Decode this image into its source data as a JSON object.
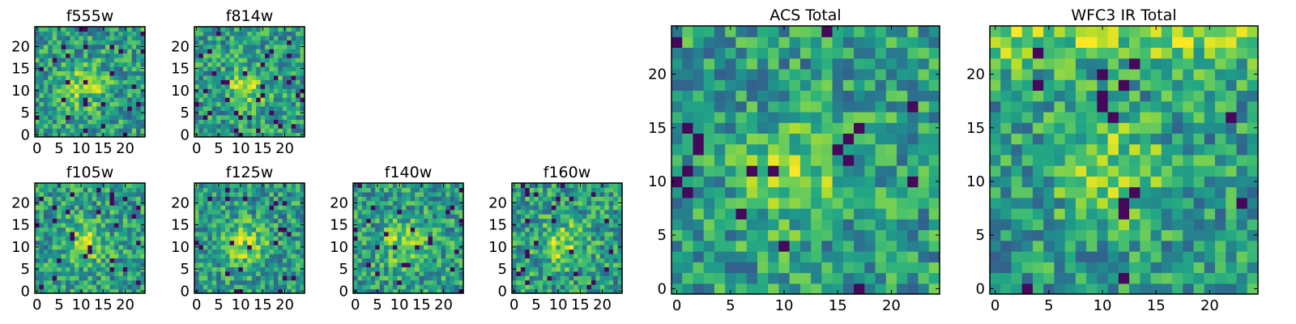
{
  "chart_data": [
    {
      "type": "heatmap",
      "title": "f555w",
      "colormap": "viridis",
      "x_ticks": [
        "0",
        "5",
        "10",
        "15",
        "20"
      ],
      "y_ticks": [
        "0",
        "5",
        "10",
        "15",
        "20"
      ],
      "xlim": [
        0,
        24
      ],
      "ylim": [
        0,
        24
      ],
      "grid_size": 25
    },
    {
      "type": "heatmap",
      "title": "f814w",
      "colormap": "viridis",
      "x_ticks": [
        "0",
        "5",
        "10",
        "15",
        "20"
      ],
      "y_ticks": [
        "0",
        "5",
        "10",
        "15",
        "20"
      ],
      "xlim": [
        0,
        24
      ],
      "ylim": [
        0,
        24
      ],
      "grid_size": 25
    },
    {
      "type": "heatmap",
      "title": "f105w",
      "colormap": "viridis",
      "x_ticks": [
        "0",
        "5",
        "10",
        "15",
        "20"
      ],
      "y_ticks": [
        "0",
        "5",
        "10",
        "15",
        "20"
      ],
      "xlim": [
        0,
        24
      ],
      "ylim": [
        0,
        24
      ],
      "grid_size": 25
    },
    {
      "type": "heatmap",
      "title": "f125w",
      "colormap": "viridis",
      "x_ticks": [
        "0",
        "5",
        "10",
        "15",
        "20"
      ],
      "y_ticks": [
        "0",
        "5",
        "10",
        "15",
        "20"
      ],
      "xlim": [
        0,
        24
      ],
      "ylim": [
        0,
        24
      ],
      "grid_size": 25
    },
    {
      "type": "heatmap",
      "title": "f140w",
      "colormap": "viridis",
      "x_ticks": [
        "0",
        "5",
        "10",
        "15",
        "20"
      ],
      "y_ticks": [
        "0",
        "5",
        "10",
        "15",
        "20"
      ],
      "xlim": [
        0,
        24
      ],
      "ylim": [
        0,
        24
      ],
      "grid_size": 25
    },
    {
      "type": "heatmap",
      "title": "f160w",
      "colormap": "viridis",
      "x_ticks": [
        "0",
        "5",
        "10",
        "15",
        "20"
      ],
      "y_ticks": [
        "0",
        "5",
        "10",
        "15",
        "20"
      ],
      "xlim": [
        0,
        24
      ],
      "ylim": [
        0,
        24
      ],
      "grid_size": 25
    },
    {
      "type": "heatmap",
      "title": "ACS Total",
      "colormap": "viridis",
      "x_ticks": [
        "0",
        "5",
        "10",
        "15",
        "20"
      ],
      "y_ticks": [
        "0",
        "5",
        "10",
        "15",
        "20"
      ],
      "xlim": [
        0,
        24
      ],
      "ylim": [
        0,
        24
      ],
      "grid_size": 25
    },
    {
      "type": "heatmap",
      "title": "WFC3 IR Total",
      "colormap": "viridis",
      "x_ticks": [
        "0",
        "5",
        "10",
        "15",
        "20"
      ],
      "y_ticks": [
        "0",
        "5",
        "10",
        "15",
        "20"
      ],
      "xlim": [
        0,
        24
      ],
      "ylim": [
        0,
        24
      ],
      "grid_size": 25
    }
  ]
}
